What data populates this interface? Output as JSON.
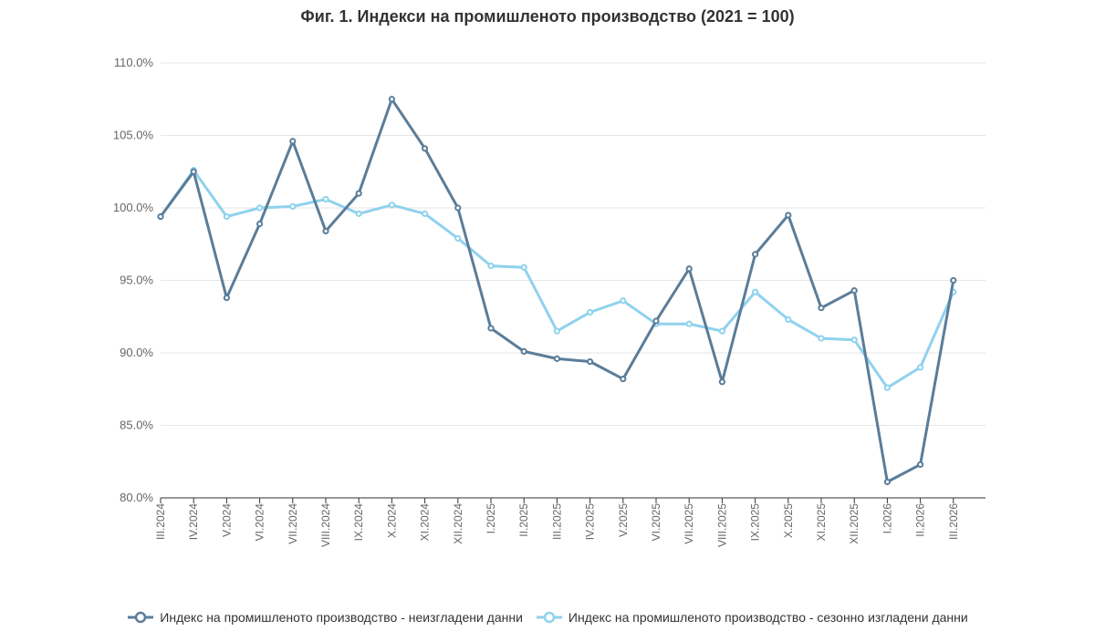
{
  "chart_data": {
    "type": "line",
    "title": "Фиг. 1. Индекси на промишленото производство (2021 = 100)",
    "xlabel": "",
    "ylabel": "",
    "ylim": [
      80,
      110
    ],
    "yticks": [
      "80.0%",
      "85.0%",
      "90.0%",
      "95.0%",
      "100.0%",
      "105.0%",
      "110.0%"
    ],
    "ytick_values": [
      80,
      85,
      90,
      95,
      100,
      105,
      110
    ],
    "grid": true,
    "legend_position": "bottom",
    "categories": [
      "III.2024",
      "IV.2024",
      "V.2024",
      "VI.2024",
      "VII.2024",
      "VIII.2024",
      "IX.2024",
      "X.2024",
      "XI.2024",
      "XII.2024",
      "I.2025",
      "II.2025",
      "III.2025",
      "IV.2025",
      "V.2025",
      "VI.2025",
      "VII.2025",
      "VIII.2025",
      "IX.2025",
      "X.2025",
      "XI.2025",
      "XII.2025",
      "I.2026",
      "II.2026",
      "III.2026"
    ],
    "series": [
      {
        "name": "Индекс на промишленото производство - неизгладени данни",
        "color": "#5a7d99",
        "values": [
          99.4,
          102.5,
          93.8,
          98.9,
          104.6,
          98.4,
          101.0,
          107.5,
          104.1,
          100.0,
          91.7,
          90.1,
          89.6,
          89.4,
          88.2,
          92.2,
          95.8,
          88.0,
          96.8,
          99.5,
          93.1,
          94.3,
          81.1,
          82.3,
          95.0
        ]
      },
      {
        "name": "Индекс на промишленото производство - сезонно изгладени данни",
        "color": "#8fd2ee",
        "values": [
          99.4,
          102.6,
          99.4,
          100.0,
          100.1,
          100.6,
          99.6,
          100.2,
          99.6,
          97.9,
          96.0,
          95.9,
          91.5,
          92.8,
          93.6,
          92.0,
          92.0,
          91.5,
          94.2,
          92.3,
          91.0,
          90.9,
          87.6,
          89.0,
          94.2
        ]
      }
    ]
  }
}
